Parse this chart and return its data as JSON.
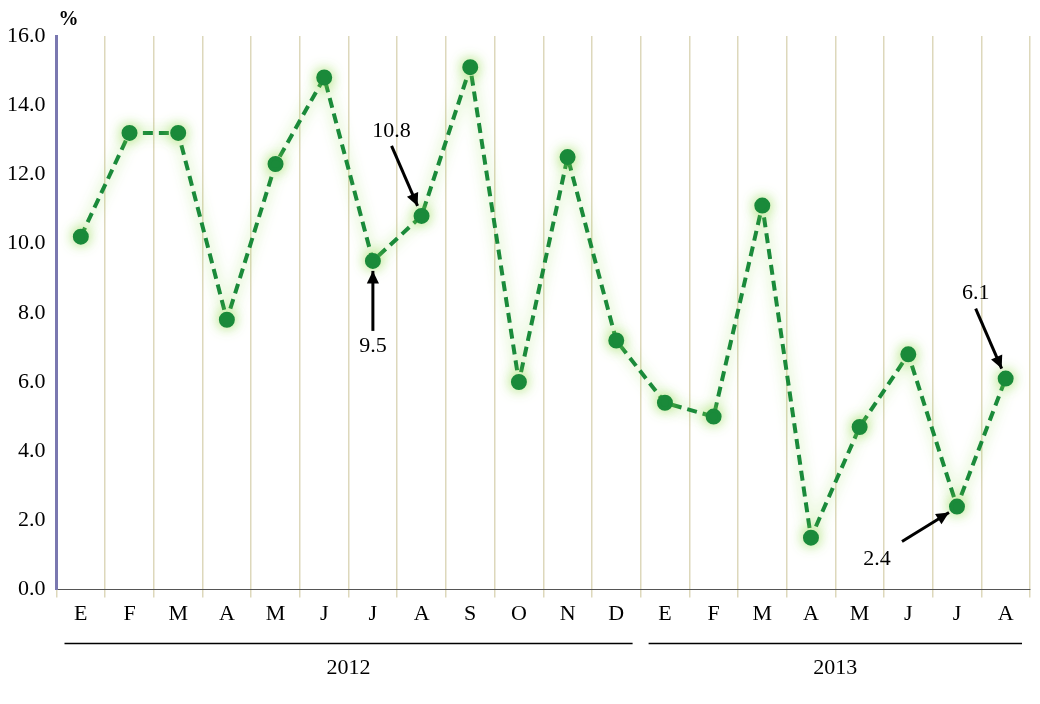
{
  "chart_data": {
    "type": "line",
    "ylabel": "%",
    "categories": [
      "E",
      "F",
      "M",
      "A",
      "M",
      "J",
      "J",
      "A",
      "S",
      "O",
      "N",
      "D",
      "E",
      "F",
      "M",
      "A",
      "M",
      "J",
      "J",
      "A"
    ],
    "series": [
      {
        "color": "#1a8a3a",
        "values": [
          10.2,
          13.2,
          13.2,
          7.8,
          12.3,
          14.8,
          9.5,
          10.8,
          15.1,
          6.0,
          12.5,
          7.2,
          5.4,
          5.0,
          11.1,
          1.5,
          4.7,
          6.8,
          2.4,
          6.1
        ],
        "value_labels": [
          null,
          null,
          null,
          null,
          null,
          null,
          "9.5",
          "10.8",
          null,
          null,
          null,
          null,
          null,
          null,
          null,
          null,
          null,
          null,
          "2.4",
          "6.1"
        ]
      }
    ],
    "ylim": [
      0,
      16
    ],
    "yticks": [
      {
        "value": 0,
        "label": "0.0"
      },
      {
        "value": 2,
        "label": "2.0"
      },
      {
        "value": 4,
        "label": "4.0"
      },
      {
        "value": 6,
        "label": "6.0"
      },
      {
        "value": 8,
        "label": "8.0"
      },
      {
        "value": 10,
        "label": "10.0"
      },
      {
        "value": 12,
        "label": "12.0"
      },
      {
        "value": 14,
        "label": "14.0"
      },
      {
        "value": 16,
        "label": "16.0"
      }
    ],
    "grid": "x",
    "legend": false,
    "marker": "circle",
    "line_style": "dashed",
    "annotations": [
      "2012",
      "2013"
    ]
  }
}
